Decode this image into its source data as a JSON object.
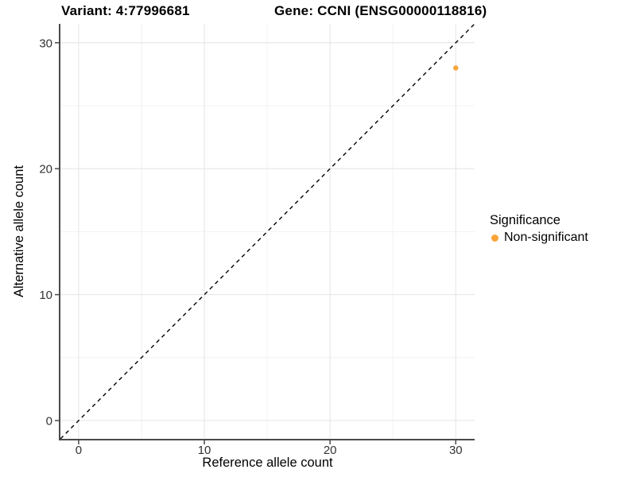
{
  "chart_data": {
    "type": "scatter",
    "title_left": "Variant: 4:77996681",
    "title_right": "Gene: CCNI (ENSG00000118816)",
    "xlabel": "Reference allele count",
    "ylabel": "Alternative allele count",
    "xlim": [
      -1.45,
      31.5
    ],
    "ylim": [
      -1.45,
      31.5
    ],
    "x_ticks": [
      0,
      10,
      20,
      30
    ],
    "y_ticks": [
      0,
      10,
      20,
      30
    ],
    "x_minor_ticks": [
      5,
      15,
      25
    ],
    "y_minor_ticks": [
      5,
      15,
      25
    ],
    "grid": true,
    "points": [
      {
        "x": 30,
        "y": 28,
        "series": "Non-significant"
      }
    ],
    "identity_line": {
      "style": "dashed",
      "slope": 1,
      "intercept": 0
    },
    "legend": {
      "position": "right",
      "title": "Significance",
      "entries": [
        {
          "label": "Non-significant",
          "color": "#FAA43A"
        }
      ]
    },
    "colors": {
      "point": "#FAA43A",
      "axis_line": "#4A4A4A",
      "tick_mark": "#4A4A4A",
      "grid_major": "#E4E4E4",
      "grid_minor": "#F2F2F2",
      "tick_text": "#333333",
      "identity_line": "#000000",
      "background": "#FFFFFF"
    }
  }
}
